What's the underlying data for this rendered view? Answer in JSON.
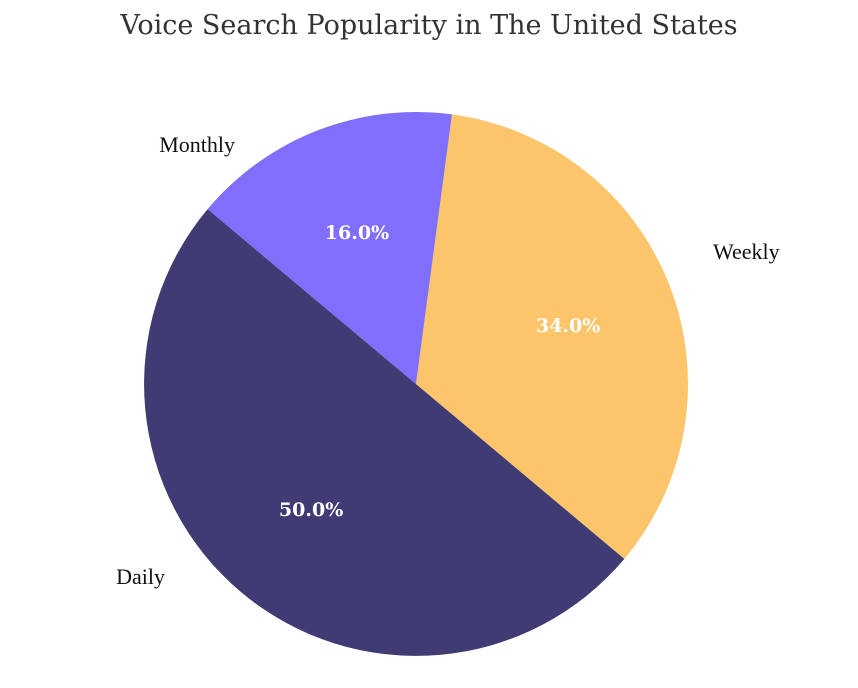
{
  "chart_data": {
    "type": "pie",
    "title": "Voice Search Popularity in The United States",
    "categories": [
      "Daily",
      "Weekly",
      "Monthly"
    ],
    "values": [
      50.0,
      34.0,
      16.0
    ],
    "value_labels": [
      "50.0%",
      "34.0%",
      "16.0%"
    ],
    "colors": [
      "#413b73",
      "#fcc56b",
      "#7f6ffa"
    ],
    "start_angle_deg": 140,
    "direction": "counterclockwise",
    "legend": "none"
  }
}
